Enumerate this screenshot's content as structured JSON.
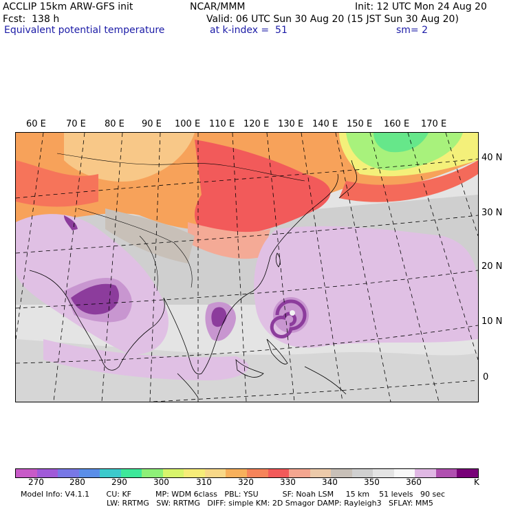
{
  "header": {
    "model": "ACCLIP 15km ARW-GFS init",
    "org": "NCAR/MMM",
    "init": "Init: 12 UTC Mon 24 Aug 20",
    "fcst": "Fcst:  138 h",
    "valid": "Valid: 06 UTC Sun 30 Aug 20 (15 JST Sun 30 Aug 20)",
    "field": "Equivalent potential temperature",
    "level": "at k-index =  51",
    "smooth": "sm= 2"
  },
  "map": {
    "lon_labels": [
      "60 E",
      "70 E",
      "80 E",
      "90 E",
      "100 E",
      "110 E",
      "120 E",
      "130 E",
      "140 E",
      "150 E",
      "160 E",
      "170 E"
    ],
    "lat_labels": [
      "40 N",
      "30 N",
      "20 N",
      "10 N",
      "0"
    ],
    "colors": {
      "green": "#66e78a",
      "light_green": "#a8f27c",
      "yellow": "#f4f07a",
      "orange_light": "#f8c888",
      "orange": "#f7a25a",
      "red_orange": "#f6745a",
      "red": "#f25a5a",
      "salmon": "#f4aa96",
      "tan": "#d8c8b8",
      "gray": "#c8c8c8",
      "light_gray": "#dcdcdc",
      "white": "#f2f2f2",
      "lavender": "#e0c0e4",
      "purple": "#c896d0",
      "dark_purple": "#8c3c9c"
    }
  },
  "colorbar": {
    "colors": [
      "#c85ac8",
      "#a05ad8",
      "#7878e6",
      "#5a8ee8",
      "#3ccacc",
      "#3ee89a",
      "#8ef078",
      "#d8f46c",
      "#f6ec78",
      "#f8d888",
      "#f7b05c",
      "#f6845a",
      "#f25a5a",
      "#f4a690",
      "#eccaaa",
      "#c8c0b8",
      "#d0d0d0",
      "#e4e4e4",
      "#f8f8f8",
      "#e0b8e4",
      "#b050b0",
      "#780078"
    ],
    "ticks": [
      "270",
      "280",
      "290",
      "300",
      "310",
      "320",
      "330",
      "340",
      "350",
      "360",
      "K"
    ]
  },
  "footer": {
    "line1": "Model Info: V4.1.1       CU: KF          MP: WDM 6class   PBL: YSU          SF: Noah LSM     15 km    51 levels   90 sec",
    "line2": "LW: RRTMG   SW: RRTMG   DIFF: simple KM: 2D Smagor DAMP: Rayleigh3   SFLAY: MM5"
  }
}
